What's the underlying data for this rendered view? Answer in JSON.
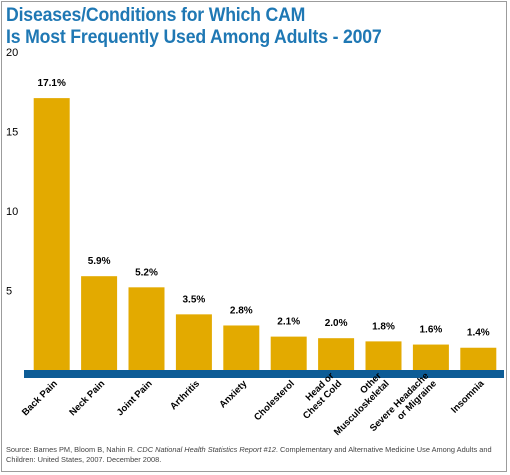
{
  "title_line1": "Diseases/Conditions for Which CAM",
  "title_line2": "Is Most Frequently Used Among Adults - 2007",
  "colors": {
    "title": "#1f78b4",
    "bar": "#e3aa00",
    "baseline": "#0d5c96",
    "text": "#000000"
  },
  "chart_data": {
    "type": "bar",
    "categories": [
      "Back Pain",
      "Neck Pain",
      "Joint Pain",
      "Arthritis",
      "Anxiety",
      "Cholesterol",
      "Head or Chest Cold",
      "Other Musculoskeletal",
      "Severe Headache or Migraine",
      "Insomnia"
    ],
    "category_label_lines": [
      [
        "Back Pain"
      ],
      [
        "Neck Pain"
      ],
      [
        "Joint Pain"
      ],
      [
        "Arthritis"
      ],
      [
        "Anxiety"
      ],
      [
        "Cholesterol"
      ],
      [
        "Head or",
        "Chest Cold"
      ],
      [
        "Other",
        "Musculoskeletal"
      ],
      [
        "Severe Headache",
        "or Migraine"
      ],
      [
        "Insomnia"
      ]
    ],
    "values": [
      17.1,
      5.9,
      5.2,
      3.5,
      2.8,
      2.1,
      2.0,
      1.8,
      1.6,
      1.4
    ],
    "bar_labels": [
      "17.1%",
      "5.9%",
      "5.2%",
      "3.5%",
      "2.8%",
      "2.1%",
      "2.0%",
      "1.8%",
      "1.6%",
      "1.4%"
    ],
    "yticks": [
      5,
      10,
      15,
      20
    ],
    "ylim": [
      0,
      20
    ],
    "grid": false
  },
  "source": {
    "prefix": "Source: Barnes PM, Bloom B, Nahin R. ",
    "italic": "CDC National Health Statistics Report #12",
    "suffix": ". Complementary and Alternative Medicine Use Among Adults and Children: United States, 2007. December 2008."
  }
}
